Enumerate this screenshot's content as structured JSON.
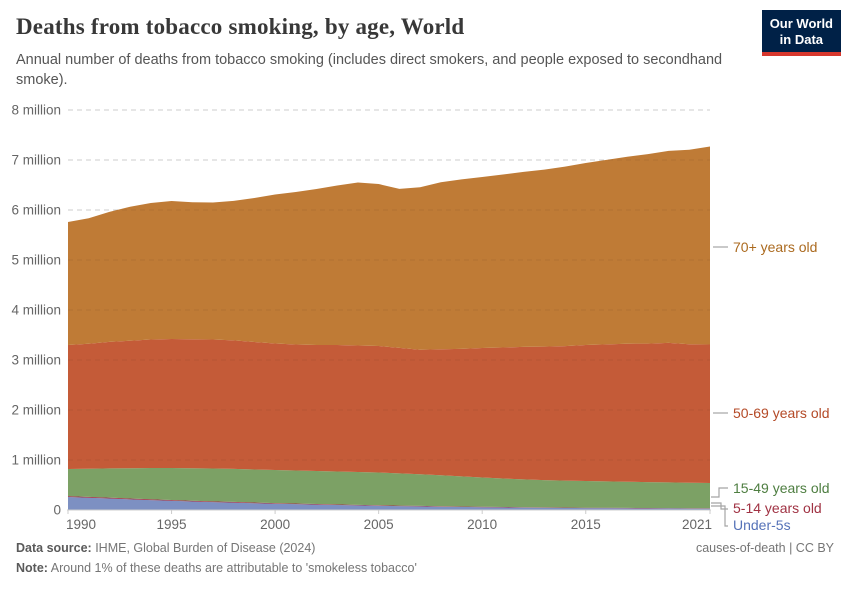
{
  "header": {
    "title": "Deaths from tobacco smoking, by age, World",
    "subtitle": "Annual number of deaths from tobacco smoking (includes direct smokers, and people exposed to secondhand smoke).",
    "logo": {
      "line1": "Our World",
      "line2": "in Data",
      "bg_color": "#002147",
      "stripe_color": "#d7372d"
    }
  },
  "chart_data": {
    "type": "area",
    "stacked": true,
    "title": "Deaths from tobacco smoking, by age, World",
    "xlabel": "",
    "ylabel": "",
    "unit": "million deaths per year",
    "grid": "horizontal-dashed",
    "legend_position": "right-of-plot",
    "ylim_millions": [
      0,
      8
    ],
    "x": [
      1990,
      1991,
      1992,
      1993,
      1994,
      1995,
      1996,
      1997,
      1998,
      1999,
      2000,
      2001,
      2002,
      2003,
      2004,
      2005,
      2006,
      2007,
      2008,
      2009,
      2010,
      2011,
      2012,
      2013,
      2014,
      2015,
      2016,
      2017,
      2018,
      2019,
      2020,
      2021
    ],
    "x_tick_years": [
      1990,
      1995,
      2000,
      2005,
      2010,
      2015,
      2021
    ],
    "x_tick_labels": [
      "1990",
      "1995",
      "2000",
      "2005",
      "2010",
      "2015",
      "2021"
    ],
    "y_tick_labels": [
      "0",
      "1 million",
      "2 million",
      "3 million",
      "4 million",
      "5 million",
      "6 million",
      "7 million",
      "8 million"
    ],
    "series": [
      {
        "name": "Under-5s",
        "color": "#7d90c2",
        "label_color": "#5572b8",
        "values_millions": [
          0.26,
          0.245,
          0.23,
          0.213,
          0.198,
          0.184,
          0.17,
          0.158,
          0.147,
          0.136,
          0.126,
          0.117,
          0.108,
          0.1,
          0.092,
          0.085,
          0.078,
          0.072,
          0.066,
          0.061,
          0.056,
          0.052,
          0.048,
          0.045,
          0.042,
          0.039,
          0.037,
          0.035,
          0.033,
          0.031,
          0.029,
          0.028
        ]
      },
      {
        "name": "5-14 years old",
        "color": "#a03448",
        "label_color": "#a03243",
        "values_millions": [
          0.018,
          0.0175,
          0.017,
          0.0165,
          0.016,
          0.0155,
          0.015,
          0.0145,
          0.014,
          0.0135,
          0.013,
          0.0125,
          0.012,
          0.0115,
          0.011,
          0.0105,
          0.01,
          0.0096,
          0.0092,
          0.0088,
          0.0084,
          0.008,
          0.0077,
          0.0074,
          0.0071,
          0.0068,
          0.0066,
          0.0064,
          0.0062,
          0.006,
          0.0058,
          0.0056
        ]
      },
      {
        "name": "15-49 years old",
        "color": "#7ca165",
        "label_color": "#4e7e41",
        "values_millions": [
          0.542,
          0.563,
          0.585,
          0.607,
          0.626,
          0.64,
          0.651,
          0.657,
          0.66,
          0.661,
          0.661,
          0.66,
          0.66,
          0.658,
          0.657,
          0.654,
          0.645,
          0.632,
          0.619,
          0.602,
          0.586,
          0.57,
          0.556,
          0.546,
          0.539,
          0.534,
          0.528,
          0.524,
          0.519,
          0.515,
          0.511,
          0.506
        ]
      },
      {
        "name": "50-69 years old",
        "color": "#c45b38",
        "label_color": "#b44a27",
        "values_millions": [
          2.48,
          2.5,
          2.53,
          2.55,
          2.57,
          2.58,
          2.58,
          2.58,
          2.57,
          2.55,
          2.53,
          2.52,
          2.52,
          2.53,
          2.53,
          2.53,
          2.51,
          2.49,
          2.52,
          2.55,
          2.59,
          2.62,
          2.65,
          2.67,
          2.69,
          2.72,
          2.74,
          2.76,
          2.77,
          2.79,
          2.77,
          2.77
        ]
      },
      {
        "name": "70+ years old",
        "color": "#bf7b36",
        "label_color": "#ab6a1f",
        "values_millions": [
          2.46,
          2.51,
          2.6,
          2.68,
          2.73,
          2.76,
          2.74,
          2.74,
          2.79,
          2.88,
          2.98,
          3.05,
          3.12,
          3.19,
          3.26,
          3.24,
          3.18,
          3.25,
          3.34,
          3.39,
          3.42,
          3.46,
          3.5,
          3.54,
          3.59,
          3.64,
          3.69,
          3.74,
          3.79,
          3.84,
          3.89,
          3.96
        ]
      }
    ]
  },
  "footer": {
    "source_label": "Data source:",
    "source_text": " IHME, Global Burden of Disease (2024)",
    "note_label": "Note:",
    "note_text": " Around 1% of these deaths are attributable to 'smokeless tobacco'",
    "license": "causes-of-death | CC BY"
  }
}
